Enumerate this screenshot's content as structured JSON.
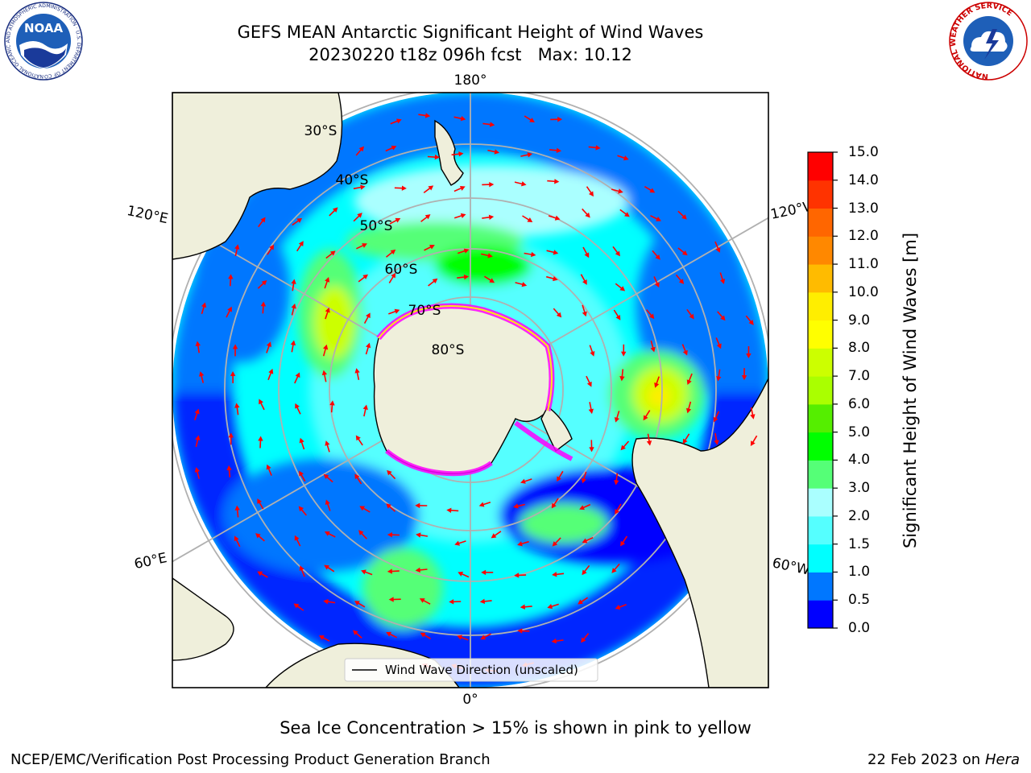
{
  "header": {
    "title_line1": "GEFS MEAN Antarctic Significant Height of Wind Waves",
    "title_line2": "20230220 t18z 096h fcst   Max: 10.12"
  },
  "logos": {
    "noaa": {
      "icon": "noaa-logo",
      "center_text": "NOAA",
      "ring_text": "NATIONAL OCEANIC AND ATMOSPHERIC ADMINISTRATION · U.S. DEPARTMENT OF COMMERCE"
    },
    "nws": {
      "icon": "nws-logo",
      "ring_text": "NATIONAL WEATHER SERVICE"
    }
  },
  "map": {
    "projection": "south-polar-stereographic",
    "longitude_labels": [
      "180°",
      "120°E",
      "120°W",
      "60°E",
      "60°W",
      "0°"
    ],
    "latitude_labels": [
      "30°S",
      "40°S",
      "50°S",
      "60°S",
      "70°S",
      "80°S"
    ],
    "legend_label": "Wind Wave Direction (unscaled)",
    "arrow_color": "#ff0000",
    "sea_ice_colors": [
      "#ff00ff",
      "#ffff00"
    ]
  },
  "colorbar": {
    "label": "Significant Height of Wind Waves [m]",
    "ticks": [
      "0.0",
      "0.5",
      "1.0",
      "1.5",
      "2.0",
      "3.0",
      "4.0",
      "5.0",
      "6.0",
      "7.0",
      "8.0",
      "9.0",
      "10.0",
      "11.0",
      "12.0",
      "13.0",
      "14.0",
      "15.0"
    ],
    "colors": [
      "#0000ff",
      "#0077ff",
      "#00ffff",
      "#55ffff",
      "#aaffff",
      "#55ff77",
      "#00ff00",
      "#55ee00",
      "#aaff00",
      "#ccff00",
      "#ffff00",
      "#ffee00",
      "#ffbb00",
      "#ff8800",
      "#ff6600",
      "#ff3300",
      "#ff0000"
    ]
  },
  "chart_data": {
    "type": "heatmap",
    "variable": "Significant Height of Wind Waves",
    "unit": "m",
    "max": 10.12,
    "color_scale_range": [
      0,
      15
    ]
  },
  "footer": {
    "note": "Sea Ice Concentration > 15% is shown in pink to yellow",
    "credit": "NCEP/EMC/Verification Post Processing Product Generation Branch",
    "date_prefix": "22 Feb 2023 on",
    "machine": "Hera"
  }
}
